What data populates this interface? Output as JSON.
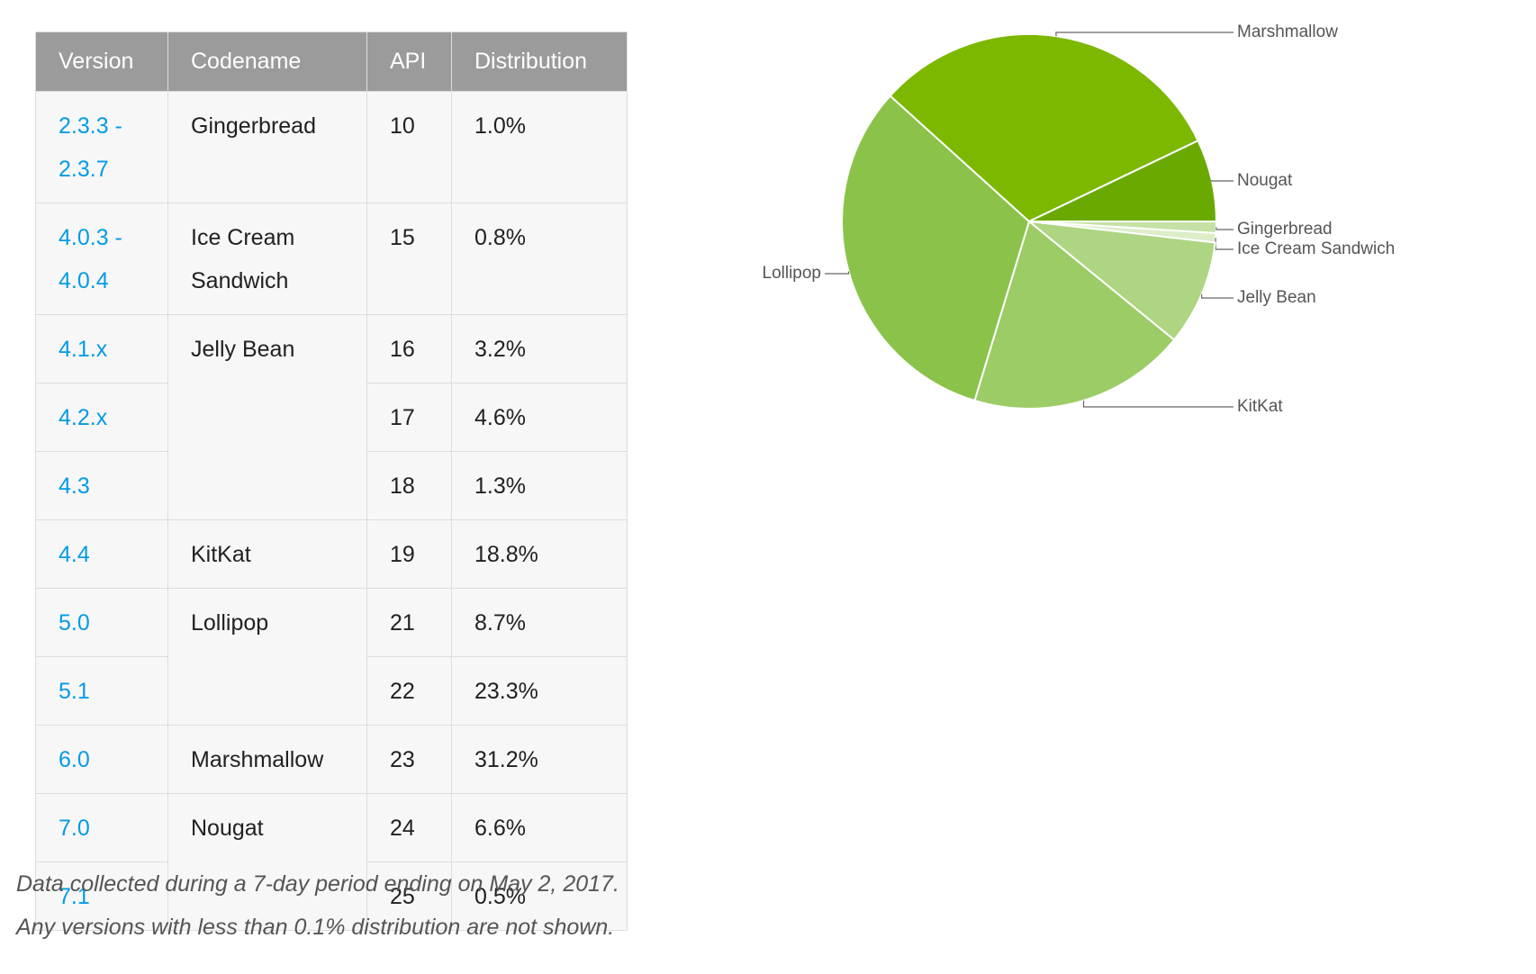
{
  "table": {
    "header": [
      "Version",
      "Codename",
      "API",
      "Distribution"
    ],
    "groups": [
      {
        "codename": "Gingerbread",
        "rows": [
          {
            "version": "2.3.3 - 2.3.7",
            "api": "10",
            "distribution": "1.0%"
          }
        ]
      },
      {
        "codename": "Ice Cream Sandwich",
        "rows": [
          {
            "version": "4.0.3 - 4.0.4",
            "api": "15",
            "distribution": "0.8%"
          }
        ]
      },
      {
        "codename": "Jelly Bean",
        "rows": [
          {
            "version": "4.1.x",
            "api": "16",
            "distribution": "3.2%"
          },
          {
            "version": "4.2.x",
            "api": "17",
            "distribution": "4.6%"
          },
          {
            "version": "4.3",
            "api": "18",
            "distribution": "1.3%"
          }
        ]
      },
      {
        "codename": "KitKat",
        "rows": [
          {
            "version": "4.4",
            "api": "19",
            "distribution": "18.8%"
          }
        ]
      },
      {
        "codename": "Lollipop",
        "rows": [
          {
            "version": "5.0",
            "api": "21",
            "distribution": "8.7%"
          },
          {
            "version": "5.1",
            "api": "22",
            "distribution": "23.3%"
          }
        ]
      },
      {
        "codename": "Marshmallow",
        "rows": [
          {
            "version": "6.0",
            "api": "23",
            "distribution": "31.2%"
          }
        ]
      },
      {
        "codename": "Nougat",
        "rows": [
          {
            "version": "7.0",
            "api": "24",
            "distribution": "6.6%"
          },
          {
            "version": "7.1",
            "api": "25",
            "distribution": "0.5%"
          }
        ]
      }
    ]
  },
  "chart_data": {
    "type": "pie",
    "categories": [
      "Gingerbread",
      "Ice Cream Sandwich",
      "Jelly Bean",
      "KitKat",
      "Lollipop",
      "Marshmallow",
      "Nougat"
    ],
    "values": [
      1.0,
      0.8,
      9.1,
      18.8,
      32.0,
      31.2,
      7.1
    ],
    "colors": [
      "#c5e1a5",
      "#dcedc8",
      "#aed581",
      "#9ccc65",
      "#8bc34a",
      "#7cb800",
      "#6aaa00"
    ]
  },
  "notes": [
    "Data collected during a 7-day period ending on May 2, 2017.",
    "Any versions with less than 0.1% distribution are not shown."
  ]
}
